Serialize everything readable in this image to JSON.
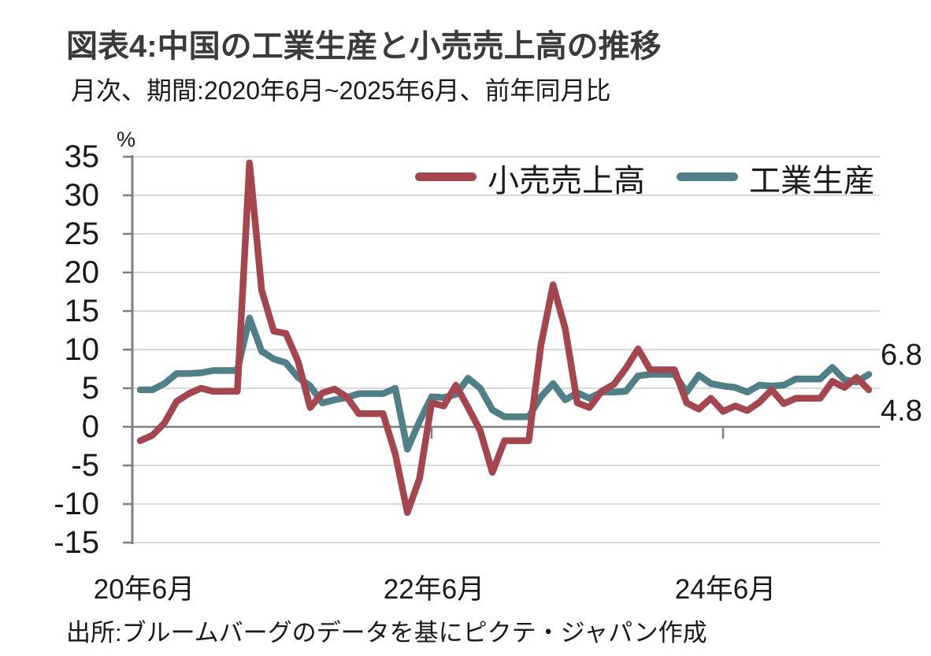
{
  "chart_data": {
    "type": "line",
    "title": "図表4:中国の工業生産と小売売上高の推移",
    "subtitle": "月次、期間:2020年6月~2025年6月、前年同月比",
    "source": "出所:ブルームバーグのデータを基にピクテ・ジャパン作成",
    "unit_label": "%",
    "ylim": [
      -15,
      35
    ],
    "yticks": [
      35,
      30,
      25,
      20,
      15,
      10,
      5,
      0,
      -5,
      -10,
      -15
    ],
    "grid": true,
    "grid_color": "#D9D9D9",
    "axis_color": "#7F7F7F",
    "x_start": "2020-06",
    "x_end": "2025-06",
    "x_ticks": [
      {
        "label": "20年6月",
        "month": 0
      },
      {
        "label": "22年6月",
        "month": 24
      },
      {
        "label": "24年6月",
        "month": 48
      }
    ],
    "legend_position": "top-right",
    "end_labels": [
      {
        "series": "工業生産",
        "value": "6.8"
      },
      {
        "series": "小売売上高",
        "value": "4.8"
      }
    ],
    "series": [
      {
        "name": "小売売上高",
        "color": "#A5464F",
        "values": [
          -1.8,
          -1.1,
          0.5,
          3.3,
          4.3,
          5.0,
          4.6,
          4.6,
          4.6,
          34.2,
          17.7,
          12.4,
          12.1,
          8.5,
          2.5,
          4.4,
          4.9,
          3.9,
          1.7,
          1.7,
          1.7,
          -3.5,
          -11.1,
          -6.7,
          3.1,
          2.7,
          5.4,
          2.5,
          -0.5,
          -5.9,
          -1.8,
          -1.8,
          -1.8,
          10.6,
          18.4,
          12.7,
          3.1,
          2.5,
          4.6,
          5.5,
          7.6,
          10.1,
          7.4,
          7.4,
          7.4,
          3.1,
          2.3,
          3.7,
          2.0,
          2.7,
          2.1,
          3.2,
          4.8,
          3.0,
          3.7,
          3.7,
          3.7,
          5.9,
          5.1,
          6.4,
          4.8
        ]
      },
      {
        "name": "工業生産",
        "color": "#4F7F87",
        "values": [
          4.8,
          4.8,
          5.6,
          6.9,
          6.9,
          7.0,
          7.3,
          7.3,
          7.3,
          14.1,
          9.8,
          8.8,
          8.3,
          6.4,
          5.3,
          3.1,
          3.5,
          3.8,
          4.3,
          4.3,
          4.3,
          5.0,
          -2.9,
          0.7,
          3.9,
          3.8,
          4.2,
          6.3,
          5.0,
          2.2,
          1.3,
          1.3,
          1.3,
          3.9,
          5.6,
          3.5,
          4.4,
          3.7,
          4.5,
          4.5,
          4.6,
          6.6,
          6.8,
          6.8,
          6.8,
          4.5,
          6.7,
          5.6,
          5.3,
          5.1,
          4.5,
          5.4,
          5.3,
          5.4,
          6.2,
          6.2,
          6.2,
          7.7,
          6.1,
          5.8,
          6.8
        ]
      }
    ]
  }
}
